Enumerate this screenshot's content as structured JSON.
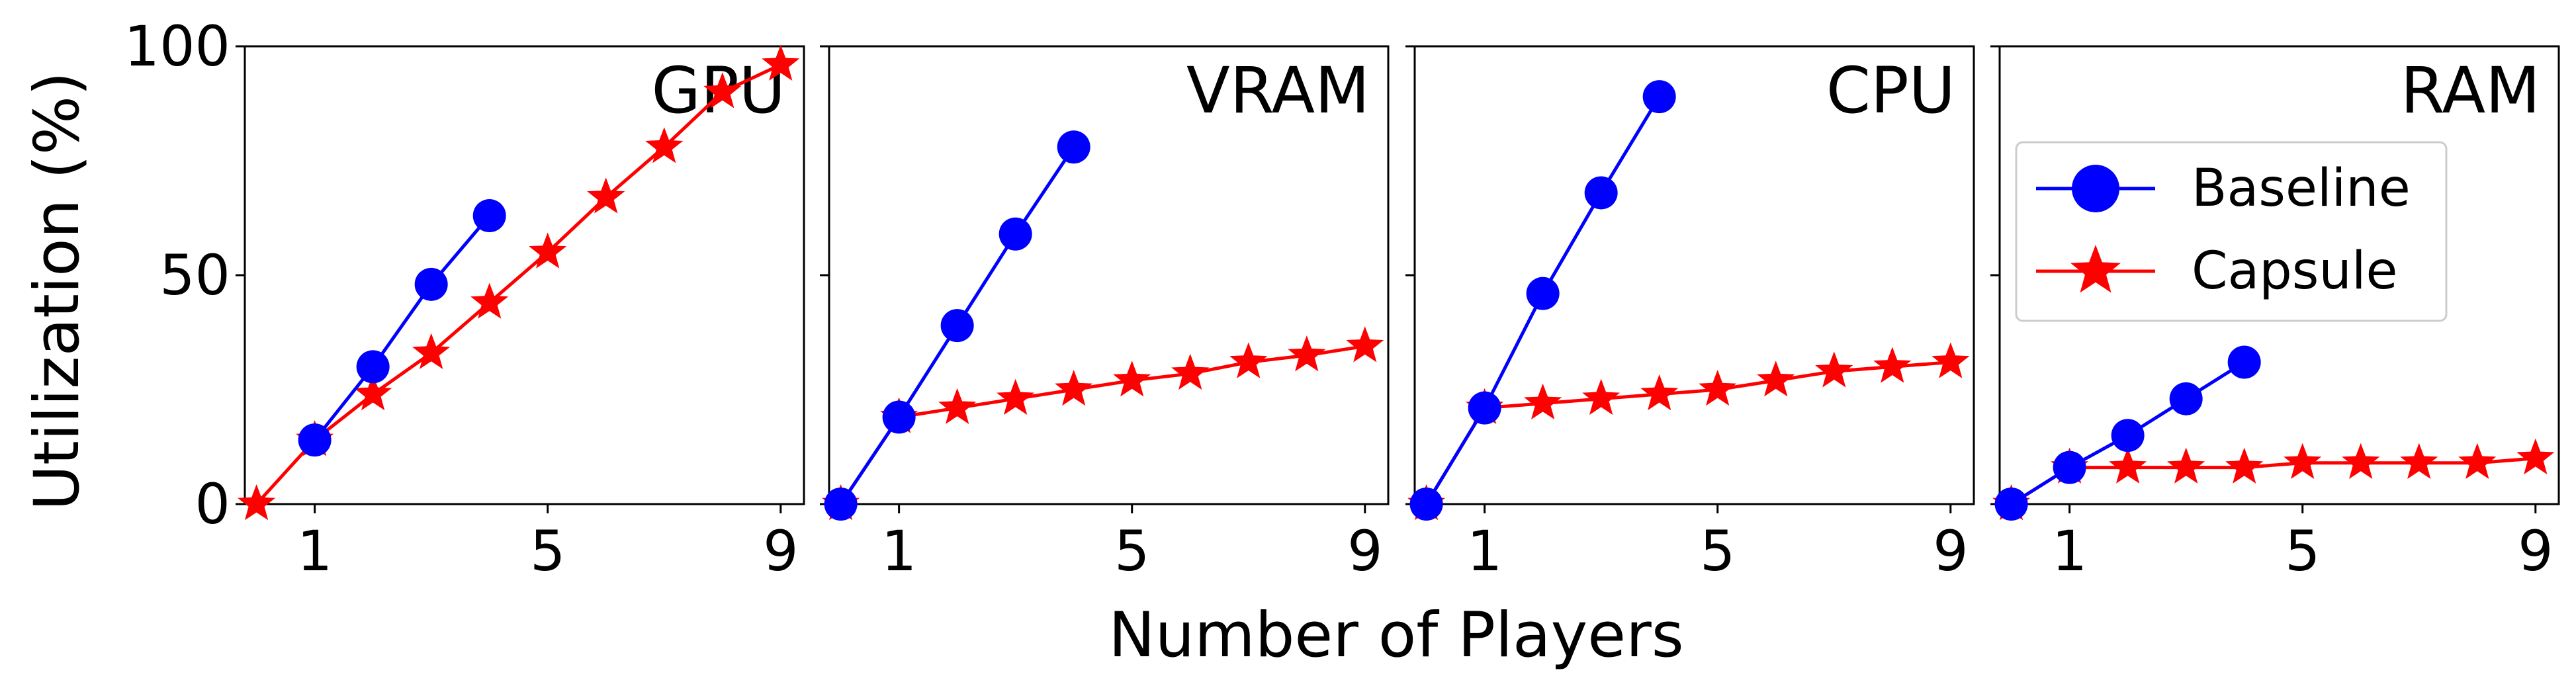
{
  "figure": {
    "ylabel": "Utilization (%)",
    "xlabel": "Number of Players"
  },
  "colors": {
    "baseline": "#0000ff",
    "capsule": "#ff0000",
    "axes": "#000000",
    "background": "#ffffff"
  },
  "legend": {
    "placement": "upper-left of RAM panel",
    "entries": [
      {
        "series": "baseline",
        "label": "Baseline",
        "marker": "circle"
      },
      {
        "series": "capsule",
        "label": "Capsule",
        "marker": "star"
      }
    ]
  },
  "chart_data": [
    {
      "type": "line",
      "title": "GPU",
      "xlim": [
        -0.2,
        9.4
      ],
      "ylim": [
        0,
        100
      ],
      "xticks": [
        1,
        5,
        9
      ],
      "yticks": [
        0,
        50,
        100
      ],
      "grid": false,
      "series": [
        {
          "name": "Baseline",
          "key": "baseline",
          "x": [
            1,
            2,
            3,
            4
          ],
          "y": [
            14,
            30,
            48,
            63
          ]
        },
        {
          "name": "Capsule",
          "key": "capsule",
          "x": [
            0,
            1,
            2,
            3,
            4,
            5,
            6,
            7,
            8,
            9
          ],
          "y": [
            0,
            14,
            24,
            33,
            44,
            55,
            67,
            78,
            90,
            96
          ]
        }
      ]
    },
    {
      "type": "line",
      "title": "VRAM",
      "xlim": [
        -0.2,
        9.4
      ],
      "ylim": [
        0,
        100
      ],
      "xticks": [
        1,
        5,
        9
      ],
      "yticks": [
        0,
        50,
        100
      ],
      "grid": false,
      "series": [
        {
          "name": "Baseline",
          "key": "baseline",
          "x": [
            0,
            1,
            2,
            3,
            4
          ],
          "y": [
            0,
            19,
            39,
            59,
            78
          ]
        },
        {
          "name": "Capsule",
          "key": "capsule",
          "x": [
            0,
            1,
            2,
            3,
            4,
            5,
            6,
            7,
            8,
            9
          ],
          "y": [
            0,
            19,
            21,
            23,
            25,
            27,
            28.5,
            31,
            32.5,
            34.5
          ]
        }
      ]
    },
    {
      "type": "line",
      "title": "CPU",
      "xlim": [
        -0.2,
        9.4
      ],
      "ylim": [
        0,
        100
      ],
      "xticks": [
        1,
        5,
        9
      ],
      "yticks": [
        0,
        50,
        100
      ],
      "grid": false,
      "series": [
        {
          "name": "Baseline",
          "key": "baseline",
          "x": [
            0,
            1,
            2,
            3,
            4
          ],
          "y": [
            0,
            21,
            46,
            68,
            89
          ]
        },
        {
          "name": "Capsule",
          "key": "capsule",
          "x": [
            0,
            1,
            2,
            3,
            4,
            5,
            6,
            7,
            8,
            9
          ],
          "y": [
            0,
            21,
            22,
            23,
            24,
            25,
            27,
            29,
            30,
            31
          ]
        }
      ]
    },
    {
      "type": "line",
      "title": "RAM",
      "xlim": [
        -0.2,
        9.4
      ],
      "ylim": [
        0,
        100
      ],
      "xticks": [
        1,
        5,
        9
      ],
      "yticks": [
        0,
        50,
        100
      ],
      "grid": false,
      "series": [
        {
          "name": "Baseline",
          "key": "baseline",
          "x": [
            0,
            1,
            2,
            3,
            4
          ],
          "y": [
            0,
            8,
            15,
            23,
            31
          ]
        },
        {
          "name": "Capsule",
          "key": "capsule",
          "x": [
            0,
            1,
            2,
            3,
            4,
            5,
            6,
            7,
            8,
            9
          ],
          "y": [
            0,
            8,
            8,
            8,
            8,
            9,
            9,
            9,
            9,
            10
          ]
        }
      ]
    }
  ]
}
